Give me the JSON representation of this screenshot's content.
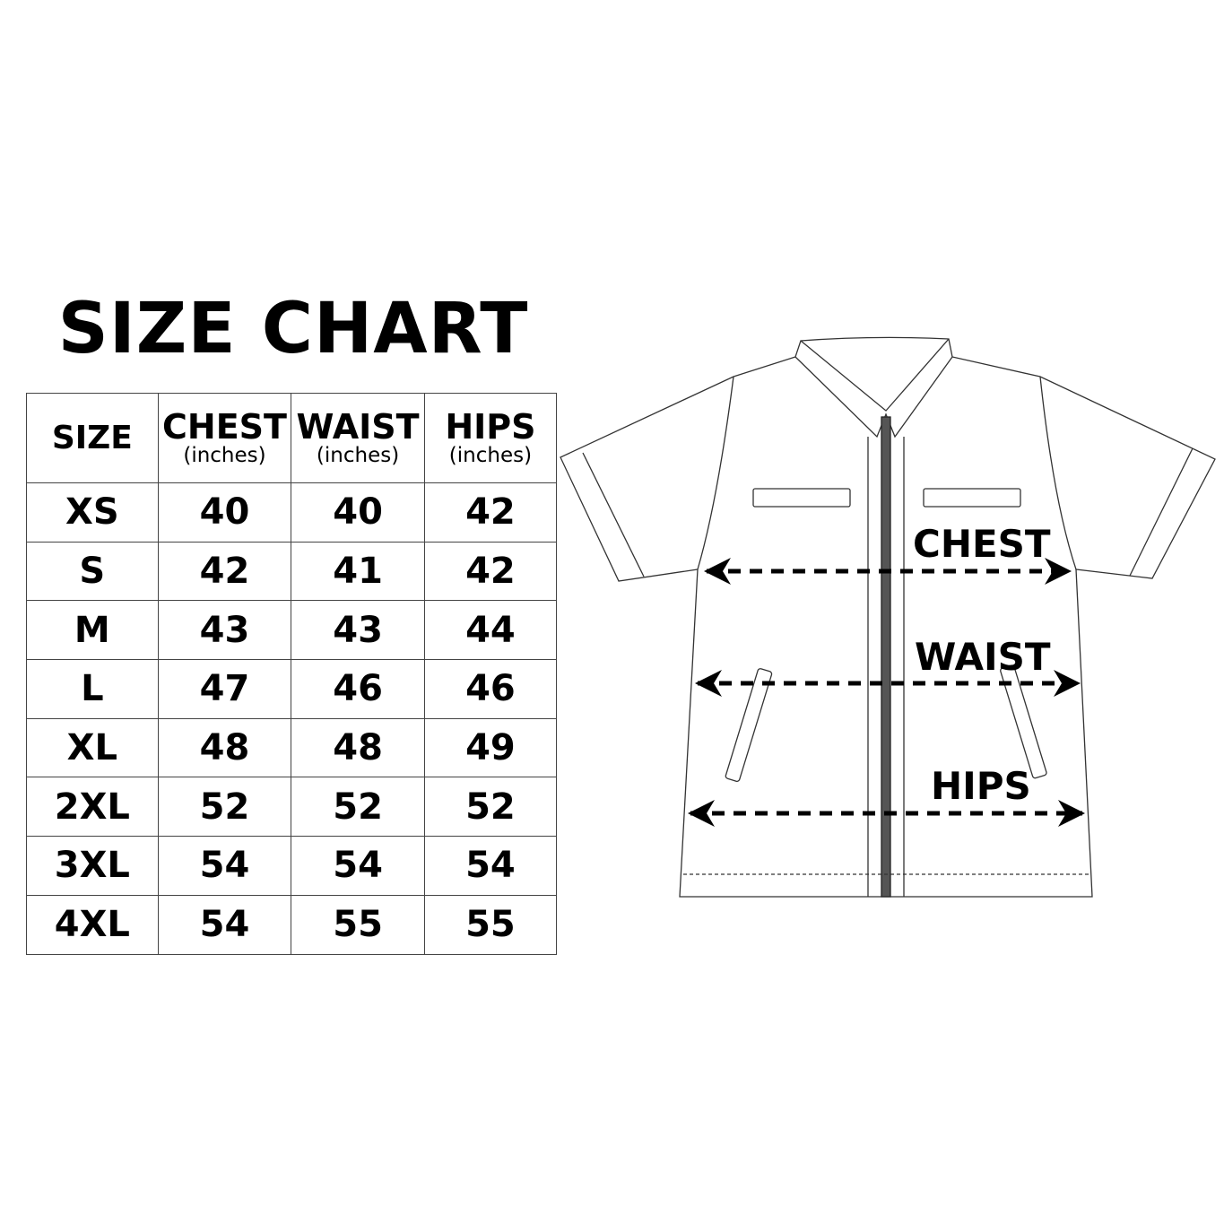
{
  "title": "SIZE CHART",
  "table": {
    "headers": [
      {
        "label": "SIZE",
        "unit": ""
      },
      {
        "label": "CHEST",
        "unit": "(inches)"
      },
      {
        "label": "WAIST",
        "unit": "(inches)"
      },
      {
        "label": "HIPS",
        "unit": "(inches)"
      }
    ],
    "rows": [
      [
        "XS",
        "40",
        "40",
        "42"
      ],
      [
        "S",
        "42",
        "41",
        "42"
      ],
      [
        "M",
        "43",
        "43",
        "44"
      ],
      [
        "L",
        "47",
        "46",
        "46"
      ],
      [
        "XL",
        "48",
        "48",
        "49"
      ],
      [
        "2XL",
        "52",
        "52",
        "52"
      ],
      [
        "3XL",
        "54",
        "54",
        "54"
      ],
      [
        "4XL",
        "54",
        "55",
        "55"
      ]
    ]
  },
  "diagram": {
    "labels": {
      "chest": "CHEST",
      "waist": "WAIST",
      "hips": "HIPS"
    }
  }
}
